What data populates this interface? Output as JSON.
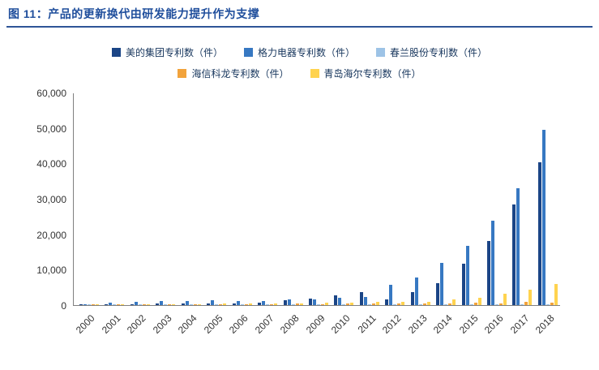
{
  "header": {
    "title": "图 11：产品的更新换代由研发能力提升作为支撑"
  },
  "chart_data": {
    "type": "bar",
    "title": "",
    "xlabel": "",
    "ylabel": "",
    "ylim": [
      0,
      60000
    ],
    "yticks": [
      "60,000",
      "50,000",
      "40,000",
      "30,000",
      "20,000",
      "10,000",
      "0"
    ],
    "grid": false,
    "legend_position": "top",
    "categories": [
      "2000",
      "2001",
      "2002",
      "2003",
      "2004",
      "2005",
      "2006",
      "2007",
      "2008",
      "2009",
      "2010",
      "2011",
      "2012",
      "2013",
      "2014",
      "2015",
      "2016",
      "2017",
      "2018"
    ],
    "series": [
      {
        "name": "美的集团专利数（件）",
        "color": "#1B4586",
        "values": [
          100,
          150,
          200,
          400,
          350,
          450,
          550,
          650,
          1300,
          1900,
          2700,
          3600,
          1600,
          3700,
          6100,
          11600,
          18000,
          28300,
          40300
        ]
      },
      {
        "name": "格力电器专利数（件）",
        "color": "#3778C2",
        "values": [
          200,
          600,
          900,
          1100,
          1200,
          1300,
          1100,
          1200,
          1600,
          1500,
          2100,
          2300,
          5800,
          7800,
          11800,
          16800,
          23800,
          33000,
          49500
        ]
      },
      {
        "name": "春兰股份专利数（件）",
        "color": "#9DC3E6",
        "values": [
          150,
          100,
          80,
          60,
          50,
          40,
          30,
          30,
          20,
          20,
          20,
          10,
          10,
          10,
          10,
          10,
          10,
          10,
          10
        ]
      },
      {
        "name": "海信科龙专利数（件）",
        "color": "#F2A33C",
        "values": [
          100,
          100,
          150,
          200,
          250,
          300,
          250,
          300,
          350,
          300,
          400,
          500,
          450,
          500,
          550,
          600,
          500,
          900,
          800
        ]
      },
      {
        "name": "青岛海尔专利数（件）",
        "color": "#FFD34F",
        "values": [
          100,
          150,
          200,
          250,
          300,
          350,
          400,
          450,
          550,
          600,
          800,
          900,
          850,
          1000,
          1600,
          2100,
          3300,
          4400,
          6000
        ]
      }
    ]
  }
}
